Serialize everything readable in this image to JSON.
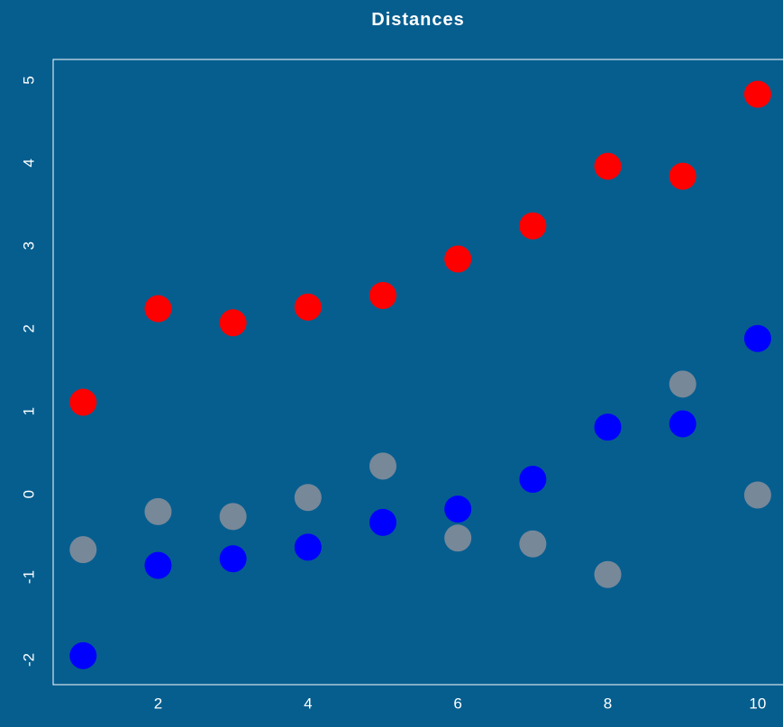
{
  "chart_data": {
    "type": "scatter",
    "title": "Distances",
    "xlabel": "",
    "ylabel": "",
    "xlim": [
      0.6,
      10.35
    ],
    "ylim": [
      -2.3,
      5.25
    ],
    "x_ticks": [
      2,
      4,
      6,
      8,
      10
    ],
    "y_ticks": [
      -2,
      -1,
      0,
      1,
      2,
      3,
      4,
      5
    ],
    "grid": false,
    "legend": "none",
    "background": "#065E8F",
    "series": [
      {
        "color": "#FF0000",
        "x": [
          1,
          2,
          3,
          4,
          5,
          6,
          7,
          8,
          9,
          10
        ],
        "y": [
          1.11,
          2.24,
          2.07,
          2.26,
          2.4,
          2.84,
          3.24,
          3.96,
          3.84,
          4.83
        ]
      },
      {
        "color": "#778899",
        "x": [
          1,
          2,
          3,
          4,
          5,
          6,
          7,
          8,
          9,
          10
        ],
        "y": [
          -0.67,
          -0.21,
          -0.27,
          -0.04,
          0.34,
          -0.53,
          -0.6,
          -0.97,
          1.33,
          -0.01
        ]
      },
      {
        "color": "#0000FF",
        "x": [
          1,
          2,
          3,
          4,
          5,
          6,
          7,
          8,
          9,
          10
        ],
        "y": [
          -1.95,
          -0.86,
          -0.78,
          -0.64,
          -0.34,
          -0.18,
          0.18,
          0.81,
          0.85,
          1.88
        ]
      }
    ]
  }
}
